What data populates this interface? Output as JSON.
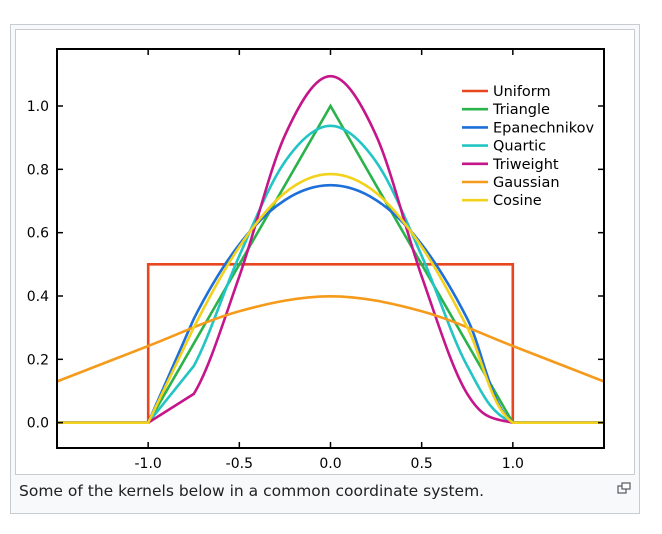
{
  "caption": "Some of the kernels below in a common coordinate system.",
  "enlarge_icon": "magnify-clip-icon",
  "chart_data": {
    "type": "line",
    "title": "",
    "xlabel": "",
    "ylabel": "",
    "xlim": [
      -1.5,
      1.5
    ],
    "ylim": [
      -0.08,
      1.18
    ],
    "x_ticks": [
      "-1.0",
      "-0.5",
      "0.0",
      "0.5",
      "1.0"
    ],
    "y_ticks": [
      "0.0",
      "0.2",
      "0.4",
      "0.6",
      "0.8",
      "1.0"
    ],
    "grid": false,
    "legend_position": "top-right",
    "series": [
      {
        "name": "Uniform",
        "color": "#e8461e",
        "x": [
          -1.5,
          -1.0,
          -1.0,
          1.0,
          1.0,
          1.5
        ],
        "y": [
          0,
          0,
          0.5,
          0.5,
          0,
          0
        ]
      },
      {
        "name": "Triangle",
        "color": "#2ab34a",
        "x": [
          -1.5,
          -1.0,
          0.0,
          1.0,
          1.5
        ],
        "y": [
          0,
          0,
          1.0,
          0,
          0
        ]
      },
      {
        "name": "Epanechnikov",
        "color": "#1e6fd9",
        "x": [
          -1.5,
          -1.0,
          -0.75,
          -0.5,
          -0.25,
          0.0,
          0.25,
          0.5,
          0.75,
          1.0,
          1.5
        ],
        "y": [
          0,
          0,
          0.328,
          0.563,
          0.703,
          0.75,
          0.703,
          0.563,
          0.328,
          0,
          0
        ]
      },
      {
        "name": "Quartic",
        "color": "#22c4c4",
        "x": [
          -1.5,
          -1.0,
          -0.75,
          -0.5,
          -0.25,
          0.0,
          0.25,
          0.5,
          0.75,
          1.0,
          1.5
        ],
        "y": [
          0,
          0,
          0.179,
          0.527,
          0.824,
          0.9375,
          0.824,
          0.527,
          0.179,
          0,
          0
        ]
      },
      {
        "name": "Triweight",
        "color": "#c4168a",
        "x": [
          -1.5,
          -1.0,
          -0.75,
          -0.5,
          -0.25,
          0.0,
          0.25,
          0.5,
          0.75,
          1.0,
          1.5
        ],
        "y": [
          0,
          0,
          0.091,
          0.462,
          0.907,
          1.094,
          0.907,
          0.462,
          0.091,
          0,
          0
        ]
      },
      {
        "name": "Gaussian",
        "color": "#f59a1b",
        "x": [
          -1.5,
          -1.0,
          -0.5,
          0.0,
          0.5,
          1.0,
          1.5
        ],
        "y": [
          0.13,
          0.242,
          0.352,
          0.399,
          0.352,
          0.242,
          0.13
        ]
      },
      {
        "name": "Cosine",
        "color": "#f2d21c",
        "x": [
          -1.5,
          -1.0,
          -0.75,
          -0.5,
          -0.25,
          0.0,
          0.25,
          0.5,
          0.75,
          1.0,
          1.5
        ],
        "y": [
          0,
          0,
          0.301,
          0.555,
          0.726,
          0.785,
          0.726,
          0.555,
          0.301,
          0,
          0
        ]
      }
    ]
  }
}
